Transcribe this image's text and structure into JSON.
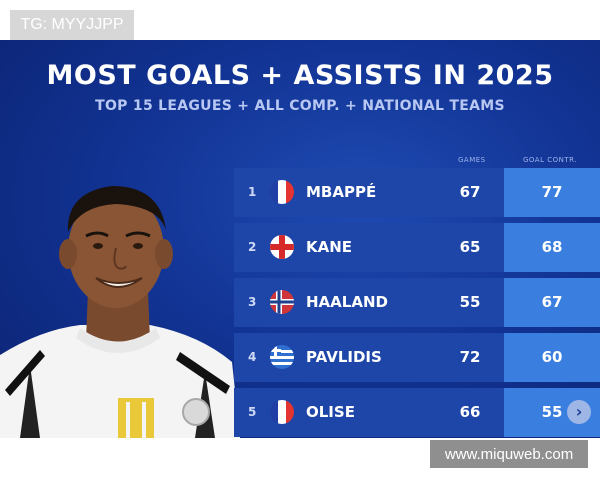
{
  "watermarks": {
    "top": "TG: MYYJJPP",
    "bottom": "www.miquweb.com"
  },
  "graphic": {
    "title": "MOST GOALS + ASSISTS IN 2025",
    "subtitle": "TOP 15 LEAGUES + ALL COMP. + NATIONAL TEAMS",
    "columns": {
      "games": "GAMES",
      "ga": "GOAL CONTR."
    },
    "rows": [
      {
        "rank": "1",
        "name": "MBAPPÉ",
        "games": "67",
        "ga": "77",
        "flag": "france-flag"
      },
      {
        "rank": "2",
        "name": "KANE",
        "games": "65",
        "ga": "68",
        "flag": "england-flag"
      },
      {
        "rank": "3",
        "name": "HAALAND",
        "games": "55",
        "ga": "67",
        "flag": "norway-flag"
      },
      {
        "rank": "4",
        "name": "PAVLIDIS",
        "games": "72",
        "ga": "60",
        "flag": "greece-flag"
      },
      {
        "rank": "5",
        "name": "OLISE",
        "games": "66",
        "ga": "55",
        "flag": "france-flag"
      }
    ],
    "colors": {
      "background": "#123495",
      "row": "#1e46a8",
      "highlight": "#3a7fe0"
    }
  }
}
